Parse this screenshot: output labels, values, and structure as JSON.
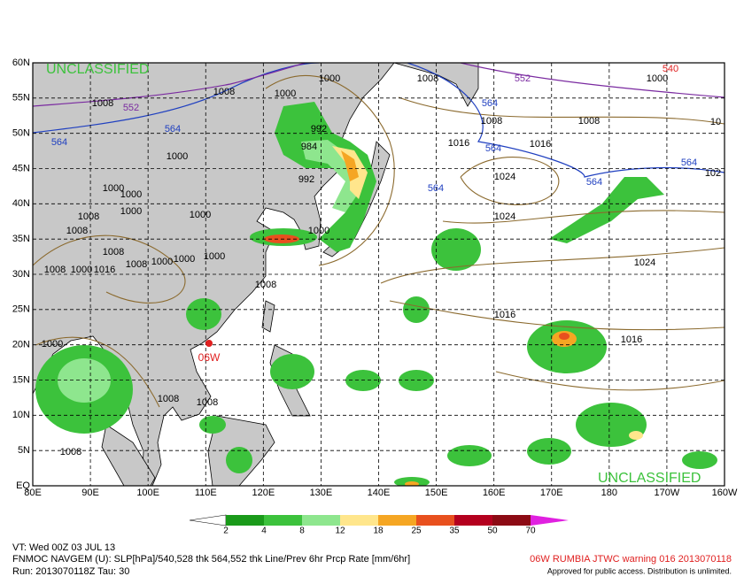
{
  "map": {
    "classification_top": "UNCLASSIFIED",
    "classification_bottom": "UNCLASSIFIED",
    "lat_labels": [
      "60N",
      "55N",
      "50N",
      "45N",
      "40N",
      "35N",
      "30N",
      "25N",
      "20N",
      "15N",
      "10N",
      "5N",
      "EQ"
    ],
    "lon_labels": [
      "80E",
      "90E",
      "100E",
      "110E",
      "120E",
      "130E",
      "140E",
      "150E",
      "160E",
      "170E",
      "180",
      "170W",
      "160W"
    ],
    "storm_label": "06W",
    "slp_labels": [
      1000,
      1008,
      1000,
      1008,
      1000,
      1008,
      992,
      984,
      992,
      1008,
      1008,
      1016,
      1016,
      1000,
      1024,
      1024,
      1000,
      1000,
      1000,
      1008,
      1000,
      1008,
      1000,
      1008,
      1008,
      1000,
      1016,
      1008,
      1000,
      1000,
      1000,
      1024,
      1008,
      1016,
      1016,
      1000,
      1008,
      1008,
      1008,
      102,
      10
    ],
    "thickness_labels": [
      552,
      564,
      564,
      564,
      552,
      540,
      564,
      564,
      564,
      564
    ]
  },
  "colorbar": {
    "labels": [
      2,
      4,
      8,
      12,
      18,
      25,
      35,
      50,
      70
    ]
  },
  "footer": {
    "valid": "VT: Wed 00Z 03 JUL 13",
    "model": "FNMOC NAVGEM (U): SLP[hPa]/540,528 thk 564,552 thk Line/Prev 6hr Prcp Rate [mm/6hr]",
    "run": "Run: 2013070118Z Tau: 30",
    "warning": "06W RUMBIA JTWC warning 016 2013070118",
    "approval": "Approved for public access. Distribution is unlimited."
  }
}
